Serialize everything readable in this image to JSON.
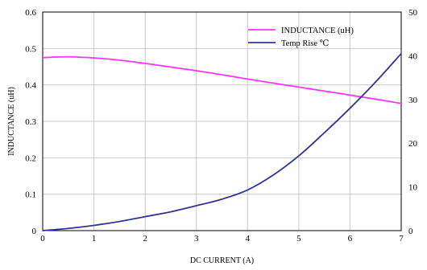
{
  "chart_data": {
    "type": "line",
    "title": "",
    "xlabel": "DC CURRENT  (A)",
    "ylabel": "INDUCTANCE (uH)",
    "y2label": "",
    "xlim": [
      0,
      7
    ],
    "ylim": [
      0,
      0.6
    ],
    "y2lim": [
      0,
      50
    ],
    "grid": true,
    "legend_position": "top-right",
    "x_ticks": [
      "0",
      "1",
      "2",
      "3",
      "4",
      "5",
      "6",
      "7"
    ],
    "y_ticks": [
      "0",
      "0.1",
      "0.2",
      "0.3",
      "0.4",
      "0.5",
      "0.6"
    ],
    "y2_ticks": [
      "0",
      "10",
      "20",
      "30",
      "40",
      "50"
    ],
    "series": [
      {
        "name": "INDUCTANCE (uH)",
        "axis": "left",
        "color": "#ff33ff",
        "x": [
          0,
          0.5,
          1,
          1.5,
          2,
          2.5,
          3,
          3.5,
          4,
          4.5,
          5,
          5.5,
          6,
          6.5,
          7
        ],
        "y": [
          0.475,
          0.477,
          0.474,
          0.468,
          0.459,
          0.449,
          0.439,
          0.428,
          0.416,
          0.405,
          0.394,
          0.383,
          0.372,
          0.361,
          0.349
        ]
      },
      {
        "name": "Temp Rise ℃",
        "axis": "right",
        "color": "#333399",
        "x": [
          0,
          0.5,
          1,
          1.5,
          2,
          2.5,
          3,
          3.5,
          4,
          4.5,
          5,
          5.5,
          6,
          6.5,
          7
        ],
        "y": [
          0,
          0.5,
          1.2,
          2.1,
          3.2,
          4.3,
          5.7,
          7.2,
          9.3,
          12.7,
          17.1,
          22.4,
          28.0,
          34.0,
          40.5
        ]
      }
    ]
  }
}
